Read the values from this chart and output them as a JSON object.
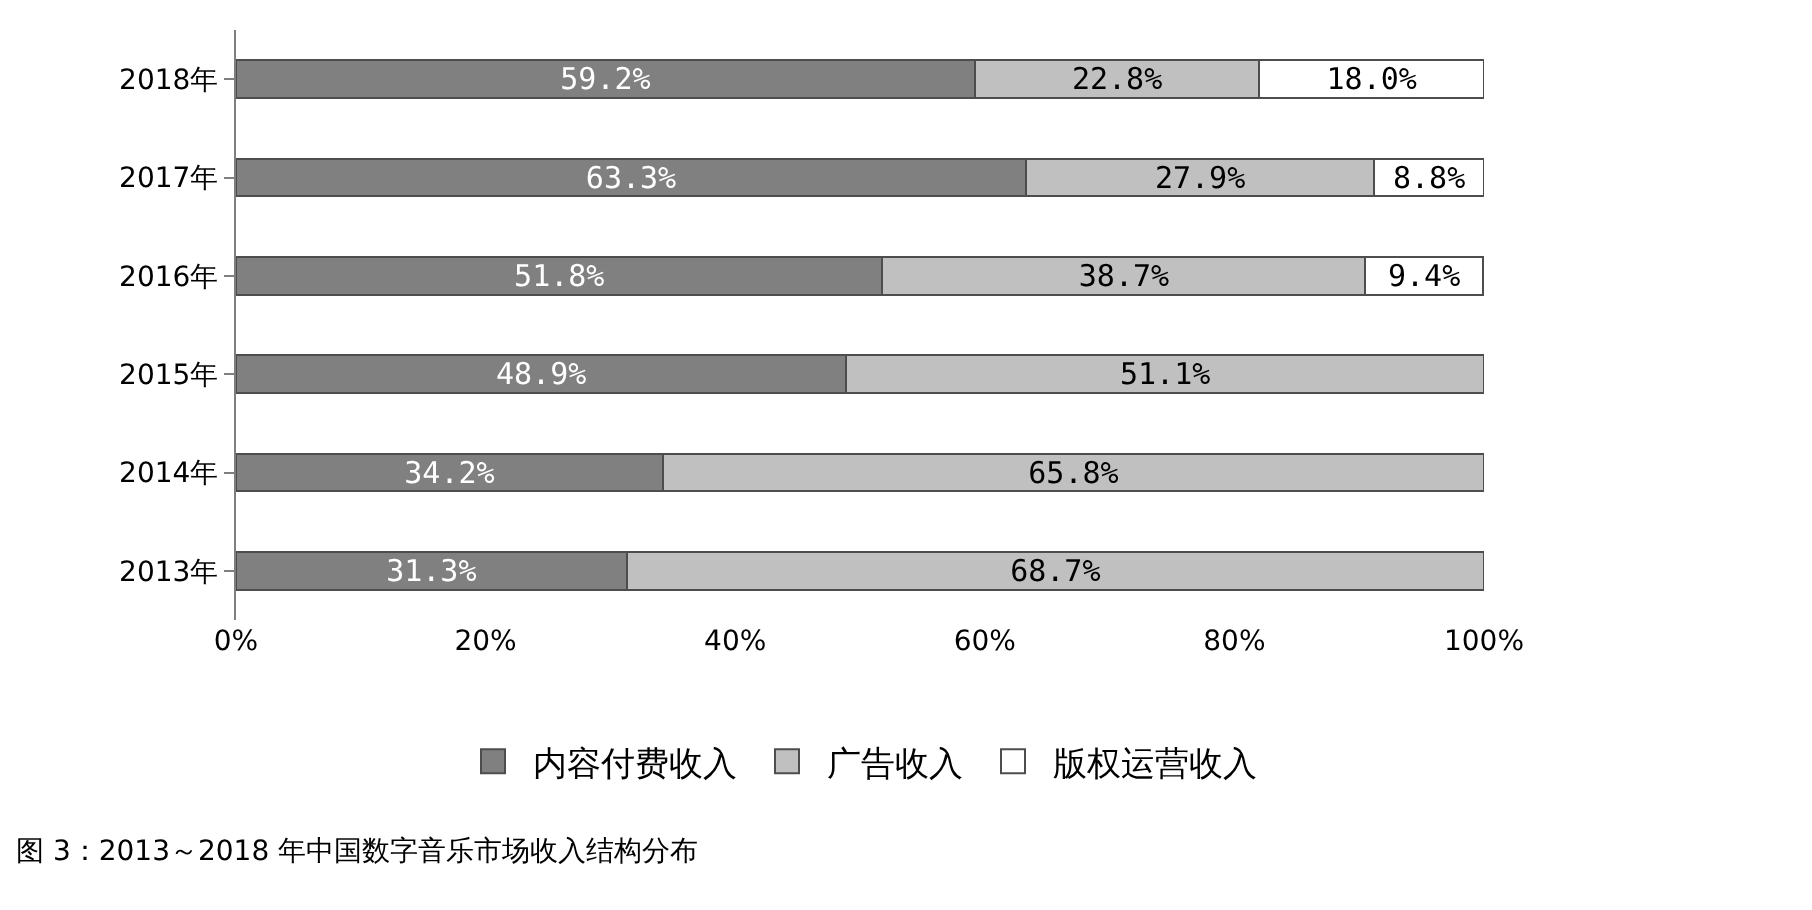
{
  "chart_data": {
    "type": "bar",
    "orientation": "horizontal",
    "stacked": true,
    "categories": [
      "2018年",
      "2017年",
      "2016年",
      "2015年",
      "2014年",
      "2013年"
    ],
    "series": [
      {
        "name": "内容付费收入",
        "color": "#808080",
        "values": [
          59.2,
          63.3,
          51.8,
          48.9,
          34.2,
          31.3
        ],
        "value_labels": [
          "59.2%",
          "63.3%",
          "51.8%",
          "48.9%",
          "34.2%",
          "31.3%"
        ]
      },
      {
        "name": "广告收入",
        "color": "#c0c0c0",
        "values": [
          22.8,
          27.9,
          38.7,
          51.1,
          65.8,
          68.7
        ],
        "value_labels": [
          "22.8%",
          "27.9%",
          "38.7%",
          "51.1%",
          "65.8%",
          "68.7%"
        ]
      },
      {
        "name": "版权运营收入",
        "color": "#ffffff",
        "values": [
          18.0,
          8.8,
          9.4,
          null,
          null,
          null
        ],
        "value_labels": [
          "18.0%",
          "8.8%",
          "9.4%",
          null,
          null,
          null
        ]
      }
    ],
    "xlim": [
      0,
      100
    ],
    "xticks": [
      {
        "value": 0,
        "label": "0%"
      },
      {
        "value": 20,
        "label": "20%"
      },
      {
        "value": 40,
        "label": "40%"
      },
      {
        "value": 60,
        "label": "60%"
      },
      {
        "value": 80,
        "label": "80%"
      },
      {
        "value": 100,
        "label": "100%"
      }
    ],
    "grid": false,
    "legend": "bottom",
    "annotations": [
      "图 3：2013～2018 年中国数字音乐市场收入结构分布"
    ]
  }
}
